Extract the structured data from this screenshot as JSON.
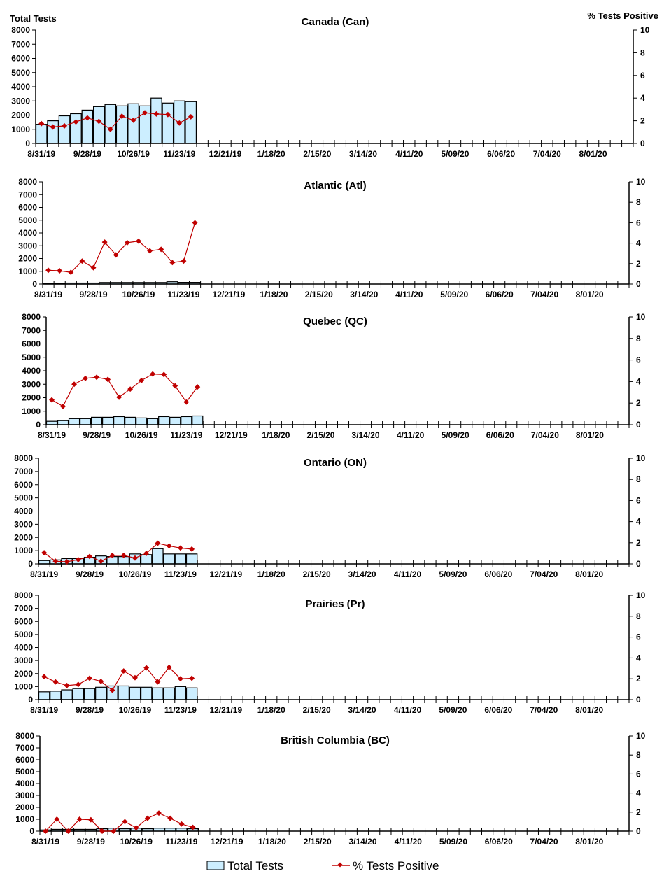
{
  "left_axis_header": "Total Tests",
  "right_axis_header": "% Tests Positive",
  "x_tick_labels": [
    "8/31/19",
    "9/28/19",
    "10/26/19",
    "11/23/19",
    "12/21/19",
    "1/18/20",
    "2/15/20",
    "3/14/20",
    "4/11/20",
    "5/09/20",
    "6/06/20",
    "7/04/20",
    "8/01/20"
  ],
  "legend": {
    "bars": "Total Tests",
    "line": "% Tests Positive",
    "placement": "bottom"
  },
  "colors": {
    "bar_fill": "#cceeff",
    "bar_stroke": "#000000",
    "line": "#c00000",
    "marker": "#c00000"
  },
  "chart_data": [
    {
      "type": "bar+line",
      "title": "Canada (Can)",
      "ylim_left": [
        0,
        8000
      ],
      "ylim_right": [
        0,
        10
      ],
      "week_count": 52,
      "total_tests": [
        1350,
        1600,
        1950,
        2100,
        2350,
        2600,
        2750,
        2650,
        2800,
        2650,
        3200,
        2850,
        3000,
        2950
      ],
      "pct_positive": [
        1.75,
        1.45,
        1.55,
        1.9,
        2.25,
        1.95,
        1.25,
        2.4,
        2.05,
        2.7,
        2.6,
        2.55,
        1.8,
        2.35
      ]
    },
    {
      "type": "bar+line",
      "title": "Atlantic (Atl)",
      "ylim_left": [
        0,
        8000
      ],
      "ylim_right": [
        0,
        10
      ],
      "week_count": 52,
      "total_tests": [
        30,
        30,
        80,
        80,
        80,
        120,
        120,
        120,
        120,
        120,
        120,
        180,
        130,
        130
      ],
      "pct_positive": [
        1.35,
        1.3,
        1.15,
        2.25,
        1.6,
        4.1,
        2.85,
        4.05,
        4.2,
        3.25,
        3.4,
        2.1,
        2.25,
        6.0
      ]
    },
    {
      "type": "bar+line",
      "title": "Quebec (QC)",
      "ylim_left": [
        0,
        8000
      ],
      "ylim_right": [
        0,
        10
      ],
      "week_count": 52,
      "total_tests": [
        250,
        300,
        450,
        450,
        550,
        550,
        600,
        550,
        500,
        450,
        600,
        550,
        600,
        650
      ],
      "pct_positive": [
        2.3,
        1.7,
        3.75,
        4.3,
        4.4,
        4.2,
        2.55,
        3.3,
        4.1,
        4.7,
        4.65,
        3.6,
        2.1,
        3.5
      ]
    },
    {
      "type": "bar+line",
      "title": "Ontario (ON)",
      "ylim_left": [
        0,
        8000
      ],
      "ylim_right": [
        0,
        10
      ],
      "week_count": 52,
      "total_tests": [
        250,
        300,
        400,
        400,
        500,
        600,
        550,
        550,
        750,
        700,
        1150,
        750,
        750,
        750
      ],
      "pct_positive": [
        1.05,
        0.25,
        0.2,
        0.4,
        0.7,
        0.25,
        0.8,
        0.8,
        0.55,
        1.0,
        1.95,
        1.7,
        1.5,
        1.4
      ]
    },
    {
      "type": "bar+line",
      "title": "Prairies (Pr)",
      "ylim_left": [
        0,
        8000
      ],
      "ylim_right": [
        0,
        10
      ],
      "week_count": 52,
      "total_tests": [
        600,
        650,
        750,
        850,
        850,
        950,
        1050,
        1050,
        950,
        950,
        900,
        900,
        1000,
        900
      ],
      "pct_positive": [
        2.2,
        1.7,
        1.35,
        1.45,
        2.05,
        1.75,
        0.9,
        2.75,
        2.1,
        3.05,
        1.7,
        3.1,
        2.0,
        2.05
      ]
    },
    {
      "type": "bar+line",
      "title": "British Columbia (BC)",
      "ylim_left": [
        0,
        8000
      ],
      "ylim_right": [
        0,
        10
      ],
      "week_count": 52,
      "total_tests": [
        100,
        150,
        150,
        150,
        150,
        200,
        250,
        200,
        250,
        200,
        250,
        250,
        250,
        200
      ],
      "pct_positive": [
        0,
        1.25,
        0,
        1.25,
        1.2,
        0,
        0,
        1.0,
        0.35,
        1.35,
        1.9,
        1.35,
        0.75,
        0.4
      ]
    }
  ]
}
